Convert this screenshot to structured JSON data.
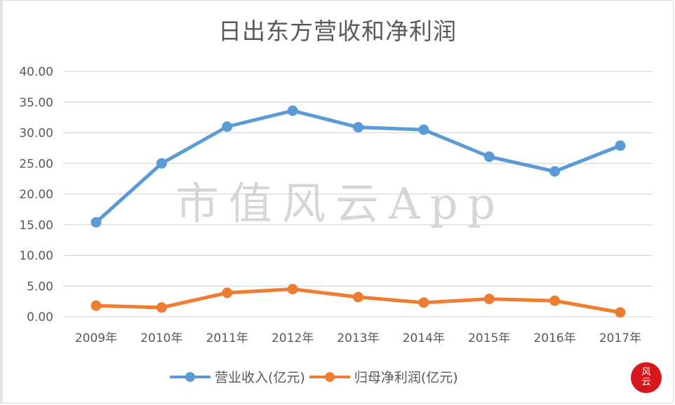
{
  "chart_data": {
    "type": "line",
    "title": "日出东方营收和净利润",
    "xlabel": "",
    "ylabel": "",
    "categories": [
      "2009年",
      "2010年",
      "2011年",
      "2012年",
      "2013年",
      "2014年",
      "2015年",
      "2016年",
      "2017年"
    ],
    "series": [
      {
        "name": "营业收入(亿元)",
        "color": "#5b9bd5",
        "values": [
          15.4,
          25.0,
          31.0,
          33.6,
          30.9,
          30.5,
          26.1,
          23.7,
          27.9
        ]
      },
      {
        "name": "归母净利润(亿元)",
        "color": "#ed7d31",
        "values": [
          1.8,
          1.5,
          3.9,
          4.5,
          3.2,
          2.3,
          2.9,
          2.6,
          0.7
        ]
      }
    ],
    "ylim": [
      0,
      40
    ],
    "yticks": [
      "0.00",
      "5.00",
      "10.00",
      "15.00",
      "20.00",
      "25.00",
      "30.00",
      "35.00",
      "40.00"
    ],
    "grid": true,
    "legend_position": "bottom",
    "watermark": "市值风云App"
  },
  "badge": {
    "text_line1": "风",
    "text_line2": "云"
  }
}
